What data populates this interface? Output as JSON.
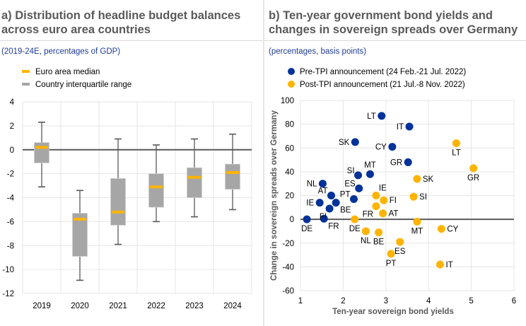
{
  "panels": {
    "a": {
      "title_line1": "a) Distribution of headline budget balances",
      "title_line2": "across euro area countries",
      "subtitle": "(2019-24E, percentages of GDP)"
    },
    "b": {
      "title_line1": "b) Ten-year government bond yields and",
      "title_line2": "changes in sovereign spreads over Germany",
      "subtitle": "(percentages, basis points)"
    }
  },
  "colors": {
    "median": "#ffb400",
    "box": "#a6a6a6",
    "whisker": "#595959",
    "pre": "#003299",
    "post": "#ffb400",
    "grid": "#e6e6e6",
    "zero": "#595959"
  },
  "chart_data": [
    {
      "type": "box",
      "title": "Distribution of headline budget balances across euro area countries",
      "subtitle": "(2019-24E, percentages of GDP)",
      "xlabel": "",
      "ylabel": "",
      "ylim": [
        -12,
        4
      ],
      "yticks": [
        4,
        2,
        0,
        -2,
        -4,
        -6,
        -8,
        -10,
        -12
      ],
      "grid": true,
      "legend_position": "top-left",
      "legend": [
        {
          "key": "median",
          "label": "Euro area median"
        },
        {
          "key": "box",
          "label": "Country interquartile range"
        }
      ],
      "categories": [
        "2019",
        "2020",
        "2021",
        "2022",
        "2023",
        "2024"
      ],
      "series": [
        {
          "category": "2019",
          "whisker_low": -3.1,
          "q1": -1.1,
          "median": 0.2,
          "q3": 0.6,
          "whisker_high": 2.3
        },
        {
          "category": "2020",
          "whisker_low": -10.9,
          "q1": -8.9,
          "median": -5.8,
          "q3": -5.3,
          "whisker_high": -3.4
        },
        {
          "category": "2021",
          "whisker_low": -7.9,
          "q1": -6.3,
          "median": -5.2,
          "q3": -2.4,
          "whisker_high": 0.9
        },
        {
          "category": "2022",
          "whisker_low": -6.0,
          "q1": -4.8,
          "median": -3.1,
          "q3": -2.0,
          "whisker_high": 0.4
        },
        {
          "category": "2023",
          "whisker_low": -5.6,
          "q1": -4.0,
          "median": -2.3,
          "q3": -1.5,
          "whisker_high": 0.9
        },
        {
          "category": "2024",
          "whisker_low": -5.0,
          "q1": -3.3,
          "median": -1.9,
          "q3": -1.2,
          "whisker_high": 1.3
        }
      ]
    },
    {
      "type": "scatter",
      "title": "Ten-year government bond yields and changes in sovereign spreads over Germany",
      "subtitle": "(percentages, basis points)",
      "xlabel": "Ten-year sovereign bond yields",
      "ylabel": "Change in sovereign spreads over Germany",
      "xlim": [
        1,
        6
      ],
      "ylim": [
        -60,
        100
      ],
      "xticks": [
        1,
        2,
        3,
        4,
        5,
        6
      ],
      "yticks": [
        100,
        80,
        60,
        40,
        20,
        0,
        -20,
        -40,
        -60
      ],
      "grid": true,
      "legend_position": "top-left",
      "series": [
        {
          "name": "Pre-TPI announcement (24 Feb.-21 Jul. 2022)",
          "key": "pre",
          "points": [
            {
              "label": "DE",
              "x": 1.15,
              "y": 0,
              "pos": "below"
            },
            {
              "label": "FR",
              "x": 1.55,
              "y": 0.5,
              "pos": "below-right"
            },
            {
              "label": "FI",
              "x": 1.68,
              "y": 9,
              "pos": "below-left"
            },
            {
              "label": "IE",
              "x": 1.45,
              "y": 14,
              "pos": "left"
            },
            {
              "label": "AT",
              "x": 1.72,
              "y": 20,
              "pos": "above-left"
            },
            {
              "label": "BE",
              "x": 1.83,
              "y": 14,
              "pos": "below-right"
            },
            {
              "label": "NL",
              "x": 1.52,
              "y": 30,
              "pos": "left"
            },
            {
              "label": "PT",
              "x": 2.25,
              "y": 17,
              "pos": "above-left"
            },
            {
              "label": "ES",
              "x": 2.37,
              "y": 26,
              "pos": "above-left"
            },
            {
              "label": "SI",
              "x": 2.35,
              "y": 37,
              "pos": "above-left"
            },
            {
              "label": "MT",
              "x": 2.63,
              "y": 38,
              "pos": "above"
            },
            {
              "label": "SK",
              "x": 2.28,
              "y": 65,
              "pos": "left"
            },
            {
              "label": "LT",
              "x": 2.9,
              "y": 87,
              "pos": "left"
            },
            {
              "label": "CY",
              "x": 3.15,
              "y": 61,
              "pos": "left"
            },
            {
              "label": "GR",
              "x": 3.52,
              "y": 48,
              "pos": "left"
            },
            {
              "label": "IT",
              "x": 3.55,
              "y": 78,
              "pos": "left"
            }
          ]
        },
        {
          "name": "Post-TPI announcement (21 Jul.-8 Nov. 2022)",
          "key": "post",
          "points": [
            {
              "label": "DE",
              "x": 2.27,
              "y": 0,
              "pos": "below"
            },
            {
              "label": "NL",
              "x": 2.53,
              "y": -10,
              "pos": "below"
            },
            {
              "label": "BE",
              "x": 2.83,
              "y": -11,
              "pos": "below"
            },
            {
              "label": "FR",
              "x": 2.77,
              "y": 11,
              "pos": "below-left"
            },
            {
              "label": "IE",
              "x": 2.77,
              "y": 20,
              "pos": "above-right"
            },
            {
              "label": "FI",
              "x": 2.95,
              "y": 16,
              "pos": "right"
            },
            {
              "label": "AT",
              "x": 2.93,
              "y": 5,
              "pos": "right"
            },
            {
              "label": "PT",
              "x": 3.12,
              "y": -29,
              "pos": "below"
            },
            {
              "label": "ES",
              "x": 3.33,
              "y": -19,
              "pos": "below"
            },
            {
              "label": "MT",
              "x": 3.73,
              "y": -2,
              "pos": "below"
            },
            {
              "label": "SK",
              "x": 3.73,
              "y": 34,
              "pos": "right"
            },
            {
              "label": "SI",
              "x": 3.65,
              "y": 19,
              "pos": "right"
            },
            {
              "label": "CY",
              "x": 4.3,
              "y": -8,
              "pos": "right"
            },
            {
              "label": "IT",
              "x": 4.27,
              "y": -38,
              "pos": "right"
            },
            {
              "label": "LT",
              "x": 4.65,
              "y": 64,
              "pos": "below"
            },
            {
              "label": "GR",
              "x": 5.05,
              "y": 43,
              "pos": "below"
            }
          ]
        }
      ]
    }
  ]
}
